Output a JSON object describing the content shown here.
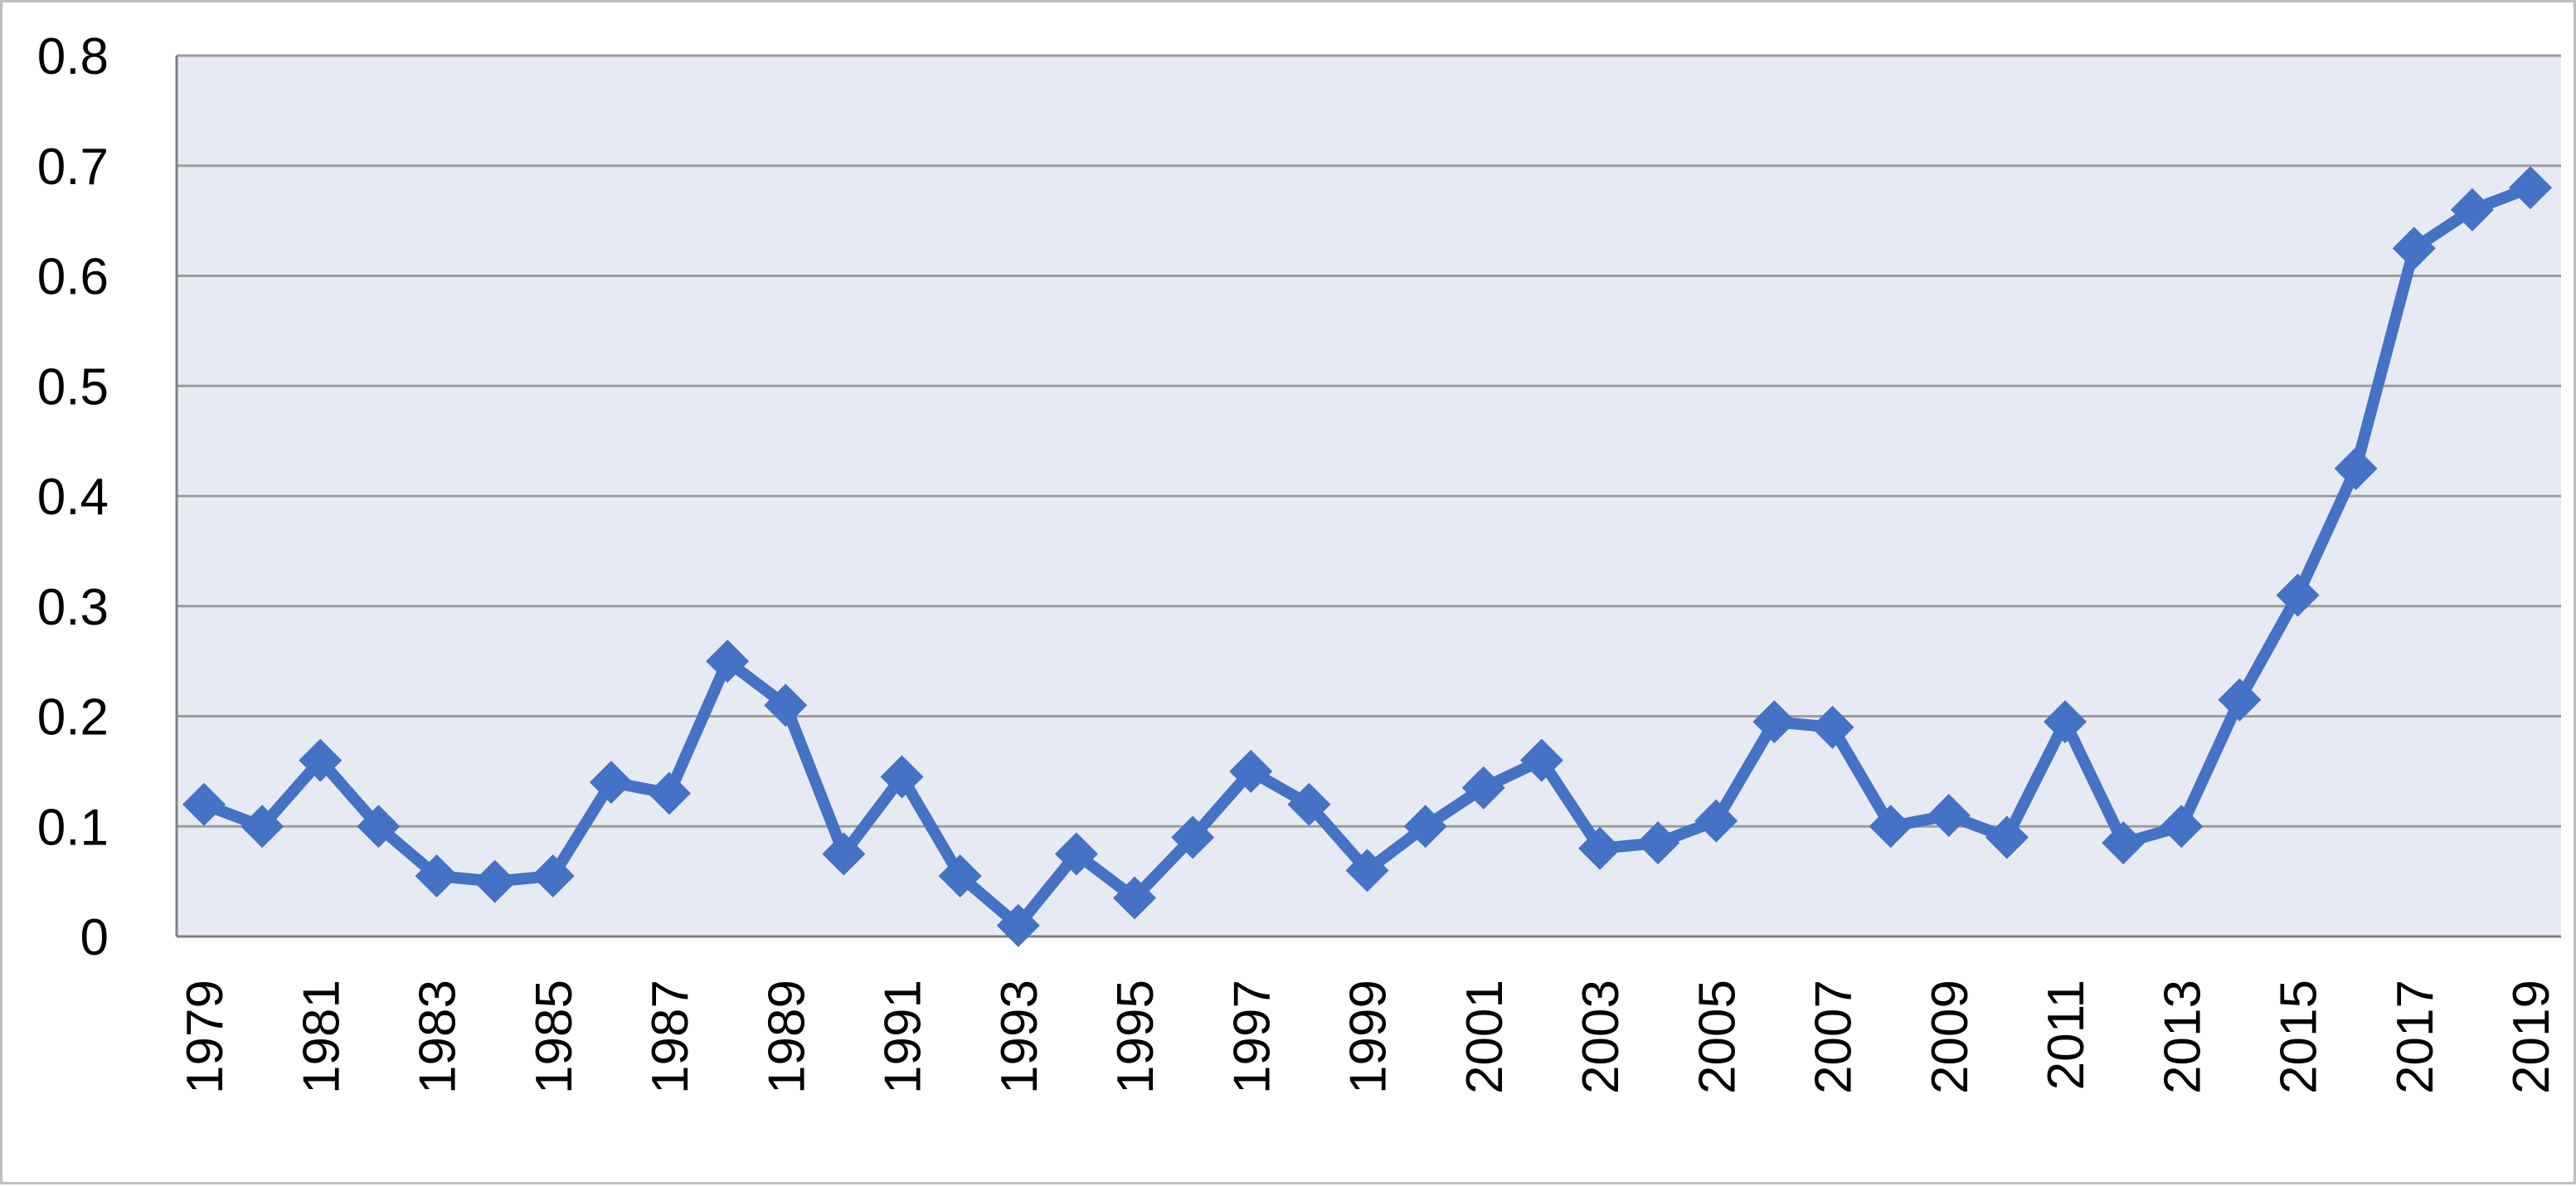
{
  "chart_data": {
    "type": "line",
    "title": "",
    "xlabel": "",
    "ylabel": "",
    "x": [
      1979,
      1980,
      1981,
      1982,
      1983,
      1984,
      1985,
      1986,
      1987,
      1988,
      1989,
      1990,
      1991,
      1992,
      1993,
      1994,
      1995,
      1996,
      1997,
      1998,
      1999,
      2000,
      2001,
      2002,
      2003,
      2004,
      2005,
      2006,
      2007,
      2008,
      2009,
      2010,
      2011,
      2012,
      2013,
      2014,
      2015,
      2016,
      2017,
      2018,
      2019
    ],
    "x_tick_labels": [
      "1979",
      "1981",
      "1983",
      "1985",
      "1987",
      "1989",
      "1991",
      "1993",
      "1995",
      "1997",
      "1999",
      "2001",
      "2003",
      "2005",
      "2007",
      "2009",
      "2011",
      "2013",
      "2015",
      "2017",
      "2019"
    ],
    "y_tick_labels": [
      "0",
      "0.1",
      "0.2",
      "0.3",
      "0.4",
      "0.5",
      "0.6",
      "0.7",
      "0.8"
    ],
    "ylim": [
      0,
      0.8
    ],
    "y_ticks": [
      0,
      0.1,
      0.2,
      0.3,
      0.4,
      0.5,
      0.6,
      0.7,
      0.8
    ],
    "grid": true,
    "legend": "none",
    "series": [
      {
        "values": [
          0.12,
          0.1,
          0.16,
          0.1,
          0.055,
          0.05,
          0.055,
          0.14,
          0.13,
          0.25,
          0.21,
          0.075,
          0.145,
          0.055,
          0.01,
          0.075,
          0.035,
          0.09,
          0.15,
          0.12,
          0.06,
          0.1,
          0.135,
          0.16,
          0.08,
          0.085,
          0.105,
          0.195,
          0.19,
          0.1,
          0.11,
          0.09,
          0.195,
          0.085,
          0.1,
          0.215,
          0.31,
          0.425,
          0.625,
          0.66,
          0.68
        ],
        "color": "#4472C4",
        "marker": "diamond"
      }
    ],
    "colors": {
      "plot_background": "#E8EAF3",
      "gridline": "#9C9C9C",
      "axis": "#7F7F7F",
      "series": "#4472C4",
      "frame": "#BFBFBF"
    }
  }
}
